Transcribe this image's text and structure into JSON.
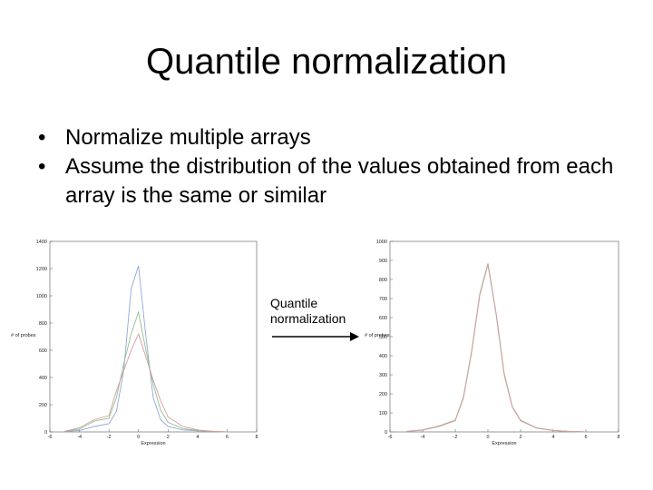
{
  "slide": {
    "title": "Quantile normalization",
    "bullets": [
      "Normalize multiple arrays",
      "Assume the distribution of the values obtained from each array is the same or similar"
    ],
    "arrow_label": [
      "Quantile",
      "normalization"
    ]
  },
  "chart_data": [
    {
      "type": "line",
      "xlabel": "Expression",
      "ylabel": "# of probes",
      "xlim": [
        -6,
        8
      ],
      "ylim": [
        0,
        1400
      ],
      "xticks": [
        -6,
        -4,
        -2,
        0,
        2,
        4,
        6,
        8
      ],
      "yticks": [
        0,
        200,
        400,
        600,
        800,
        1000,
        1200,
        1400
      ],
      "grid": false,
      "colors": [
        "#8fa8d8",
        "#8fc08f",
        "#d89a9a"
      ],
      "series": [
        {
          "x": [
            -5,
            -4,
            -3,
            -2,
            -1.5,
            -1,
            -0.5,
            0,
            0.5,
            1,
            1.5,
            2,
            3,
            4,
            5,
            6
          ],
          "values": [
            5,
            10,
            40,
            60,
            150,
            450,
            1050,
            1220,
            700,
            250,
            90,
            40,
            15,
            8,
            5,
            0
          ]
        },
        {
          "x": [
            -5,
            -4,
            -3,
            -2,
            -1.5,
            -1,
            -0.5,
            0,
            0.5,
            1,
            1.5,
            2,
            3,
            4,
            5,
            6
          ],
          "values": [
            5,
            20,
            80,
            100,
            250,
            500,
            720,
            880,
            600,
            350,
            160,
            70,
            25,
            10,
            5,
            0
          ]
        },
        {
          "x": [
            -5,
            -4,
            -3,
            -2,
            -1.5,
            -1,
            -0.5,
            0,
            0.5,
            1,
            1.5,
            2,
            3,
            4,
            5,
            6
          ],
          "values": [
            5,
            30,
            90,
            120,
            300,
            450,
            600,
            720,
            550,
            380,
            230,
            110,
            40,
            15,
            5,
            0
          ]
        }
      ]
    },
    {
      "type": "line",
      "xlabel": "Expression",
      "ylabel": "# of probes",
      "xlim": [
        -6,
        8
      ],
      "ylim": [
        0,
        1000
      ],
      "xticks": [
        -6,
        -4,
        -2,
        0,
        2,
        4,
        6,
        8
      ],
      "yticks": [
        0,
        100,
        200,
        300,
        400,
        500,
        600,
        700,
        800,
        900,
        1000
      ],
      "grid": false,
      "colors": [
        "#8fa8d8",
        "#8fc08f",
        "#d89a9a"
      ],
      "series": [
        {
          "x": [
            -5,
            -4,
            -3,
            -2,
            -1.5,
            -1,
            -0.5,
            0,
            0.5,
            1,
            1.5,
            2,
            3,
            4,
            5,
            6
          ],
          "values": [
            3,
            10,
            30,
            60,
            180,
            420,
            720,
            880,
            620,
            300,
            130,
            60,
            20,
            8,
            3,
            0
          ]
        },
        {
          "x": [
            -5,
            -4,
            -3,
            -2,
            -1.5,
            -1,
            -0.5,
            0,
            0.5,
            1,
            1.5,
            2,
            3,
            4,
            5,
            6
          ],
          "values": [
            3,
            11,
            32,
            62,
            185,
            425,
            725,
            885,
            625,
            305,
            132,
            62,
            21,
            8,
            3,
            0
          ]
        },
        {
          "x": [
            -5,
            -4,
            -3,
            -2,
            -1.5,
            -1,
            -0.5,
            0,
            0.5,
            1,
            1.5,
            2,
            3,
            4,
            5,
            6
          ],
          "values": [
            3,
            9,
            29,
            59,
            178,
            418,
            718,
            878,
            618,
            298,
            128,
            58,
            19,
            7,
            3,
            0
          ]
        }
      ]
    }
  ]
}
